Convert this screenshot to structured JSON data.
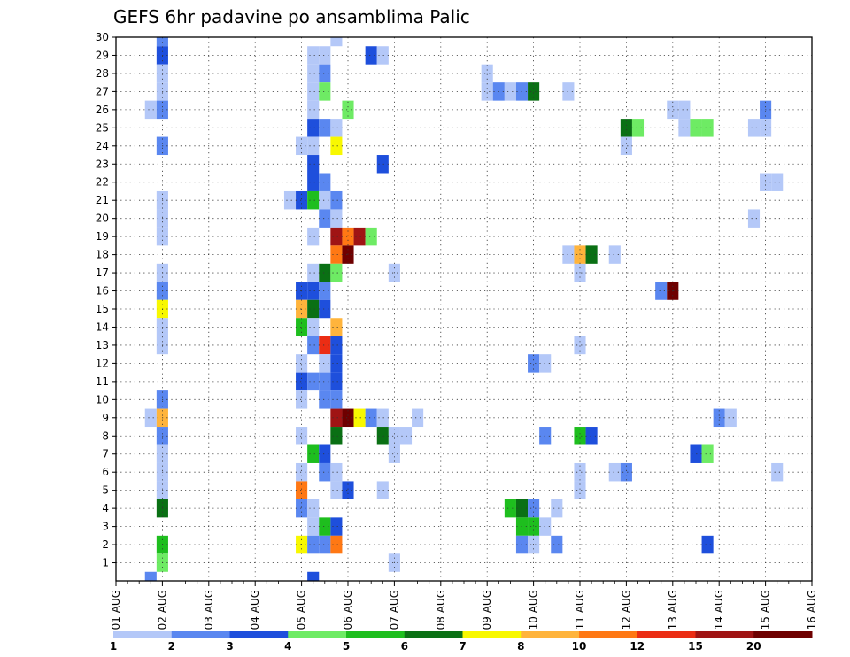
{
  "chart_data": {
    "type": "heatmap",
    "title": "GEFS 6hr padavine po ansamblima Palic",
    "xlabel": "",
    "ylabel": "",
    "x_ticks": [
      "01 AUG",
      "02 AUG",
      "03 AUG",
      "04 AUG",
      "05 AUG",
      "06 AUG",
      "07 AUG",
      "08 AUG",
      "09 AUG",
      "10 AUG",
      "11 AUG",
      "12 AUG",
      "13 AUG",
      "14 AUG",
      "15 AUG",
      "16 AUG"
    ],
    "y_ticks": [
      "1",
      "2",
      "3",
      "4",
      "5",
      "6",
      "7",
      "8",
      "9",
      "10",
      "11",
      "12",
      "13",
      "14",
      "15",
      "16",
      "17",
      "18",
      "19",
      "20",
      "21",
      "22",
      "23",
      "24",
      "25",
      "26",
      "27",
      "28",
      "29",
      "30"
    ],
    "xlim_days": [
      0,
      15
    ],
    "ylim_members": [
      0,
      30
    ],
    "grid": true,
    "colorbar": {
      "levels": [
        "1",
        "2",
        "3",
        "4",
        "5",
        "6",
        "7",
        "8",
        "10",
        "12",
        "15",
        "20"
      ],
      "colors": [
        "#b4c8f8",
        "#5a87f0",
        "#1e4fdc",
        "#6eeb64",
        "#1ebe1e",
        "#0a7014",
        "#f8f800",
        "#ffb43c",
        "#ff7814",
        "#eb2d14",
        "#a01414",
        "#6e0000"
      ]
    },
    "cells_note": "[day_offset_from_01_AUG, ensemble_member, color_class 0-11]",
    "cells": [
      [
        1.0,
        30,
        1
      ],
      [
        1.0,
        29,
        2
      ],
      [
        1.0,
        28,
        0
      ],
      [
        1.0,
        27,
        0
      ],
      [
        0.75,
        26,
        0
      ],
      [
        1.0,
        26,
        1
      ],
      [
        1.0,
        24,
        1
      ],
      [
        1.0,
        21,
        0
      ],
      [
        1.0,
        20,
        0
      ],
      [
        1.0,
        19,
        0
      ],
      [
        1.0,
        17,
        0
      ],
      [
        1.0,
        16,
        1
      ],
      [
        1.0,
        15,
        6
      ],
      [
        1.0,
        14,
        0
      ],
      [
        1.0,
        13,
        0
      ],
      [
        1.0,
        10,
        1
      ],
      [
        0.75,
        9,
        0
      ],
      [
        1.0,
        9,
        7
      ],
      [
        1.0,
        8,
        1
      ],
      [
        1.0,
        7,
        0
      ],
      [
        1.0,
        6,
        0
      ],
      [
        1.0,
        5,
        0
      ],
      [
        1.0,
        4,
        5
      ],
      [
        1.0,
        2,
        4
      ],
      [
        1.0,
        1,
        3
      ],
      [
        0.75,
        0,
        1
      ],
      [
        4.75,
        30,
        0
      ],
      [
        4.25,
        29,
        0
      ],
      [
        4.5,
        29,
        0
      ],
      [
        5.5,
        29,
        2
      ],
      [
        5.75,
        29,
        0
      ],
      [
        4.25,
        28,
        0
      ],
      [
        4.5,
        28,
        1
      ],
      [
        4.25,
        27,
        0
      ],
      [
        4.5,
        27,
        3
      ],
      [
        4.25,
        26,
        0
      ],
      [
        5.0,
        26,
        3
      ],
      [
        4.25,
        25,
        2
      ],
      [
        4.5,
        25,
        1
      ],
      [
        4.75,
        25,
        0
      ],
      [
        4.0,
        24,
        0
      ],
      [
        4.25,
        24,
        0
      ],
      [
        4.75,
        24,
        6
      ],
      [
        4.25,
        23,
        2
      ],
      [
        5.75,
        23,
        2
      ],
      [
        4.25,
        22,
        2
      ],
      [
        4.5,
        22,
        1
      ],
      [
        3.75,
        21,
        0
      ],
      [
        4.0,
        21,
        2
      ],
      [
        4.25,
        21,
        4
      ],
      [
        4.5,
        21,
        0
      ],
      [
        4.75,
        21,
        1
      ],
      [
        4.5,
        20,
        1
      ],
      [
        4.75,
        20,
        0
      ],
      [
        4.25,
        19,
        0
      ],
      [
        4.75,
        19,
        10
      ],
      [
        5.0,
        19,
        8
      ],
      [
        5.25,
        19,
        10
      ],
      [
        5.5,
        19,
        3
      ],
      [
        4.75,
        18,
        8
      ],
      [
        5.0,
        18,
        11
      ],
      [
        4.25,
        17,
        0
      ],
      [
        4.5,
        17,
        5
      ],
      [
        4.75,
        17,
        3
      ],
      [
        4.0,
        16,
        2
      ],
      [
        4.25,
        16,
        2
      ],
      [
        4.5,
        16,
        1
      ],
      [
        4.0,
        15,
        7
      ],
      [
        4.25,
        15,
        5
      ],
      [
        4.5,
        15,
        2
      ],
      [
        4.0,
        14,
        4
      ],
      [
        4.25,
        14,
        0
      ],
      [
        4.75,
        14,
        7
      ],
      [
        4.25,
        13,
        1
      ],
      [
        4.5,
        13,
        9
      ],
      [
        4.75,
        13,
        2
      ],
      [
        4.0,
        12,
        0
      ],
      [
        4.5,
        12,
        0
      ],
      [
        4.75,
        12,
        2
      ],
      [
        4.0,
        11,
        2
      ],
      [
        4.25,
        11,
        1
      ],
      [
        4.5,
        11,
        1
      ],
      [
        4.75,
        11,
        2
      ],
      [
        4.0,
        10,
        0
      ],
      [
        4.5,
        10,
        1
      ],
      [
        4.75,
        10,
        1
      ],
      [
        4.75,
        9,
        10
      ],
      [
        5.0,
        9,
        11
      ],
      [
        5.25,
        9,
        6
      ],
      [
        5.5,
        9,
        1
      ],
      [
        5.75,
        9,
        0
      ],
      [
        4.0,
        8,
        0
      ],
      [
        4.75,
        8,
        5
      ],
      [
        4.25,
        7,
        4
      ],
      [
        4.5,
        7,
        2
      ],
      [
        4.0,
        6,
        0
      ],
      [
        4.5,
        6,
        1
      ],
      [
        4.75,
        6,
        0
      ],
      [
        4.0,
        5,
        8
      ],
      [
        4.75,
        5,
        0
      ],
      [
        5.0,
        5,
        2
      ],
      [
        4.0,
        4,
        1
      ],
      [
        4.25,
        4,
        0
      ],
      [
        4.25,
        3,
        0
      ],
      [
        4.5,
        3,
        4
      ],
      [
        4.75,
        3,
        2
      ],
      [
        4.0,
        2,
        6
      ],
      [
        4.25,
        2,
        1
      ],
      [
        4.5,
        2,
        1
      ],
      [
        4.75,
        2,
        8
      ],
      [
        4.25,
        0,
        2
      ],
      [
        5.75,
        5,
        0
      ],
      [
        6.0,
        7,
        0
      ],
      [
        6.5,
        9,
        0
      ],
      [
        6.0,
        17,
        0
      ],
      [
        6.0,
        1,
        0
      ],
      [
        5.75,
        8,
        5
      ],
      [
        6.0,
        8,
        0
      ],
      [
        6.25,
        8,
        0
      ],
      [
        8.0,
        28,
        0
      ],
      [
        8.0,
        27,
        0
      ],
      [
        8.25,
        27,
        1
      ],
      [
        8.5,
        27,
        0
      ],
      [
        8.75,
        27,
        1
      ],
      [
        9.0,
        27,
        5
      ],
      [
        9.75,
        27,
        0
      ],
      [
        8.5,
        4,
        4
      ],
      [
        8.75,
        4,
        5
      ],
      [
        9.0,
        4,
        1
      ],
      [
        9.5,
        4,
        0
      ],
      [
        8.75,
        3,
        4
      ],
      [
        9.0,
        3,
        4
      ],
      [
        9.25,
        3,
        0
      ],
      [
        8.75,
        2,
        1
      ],
      [
        9.0,
        2,
        0
      ],
      [
        9.5,
        2,
        1
      ],
      [
        9.0,
        12,
        1
      ],
      [
        9.25,
        12,
        0
      ],
      [
        9.25,
        8,
        1
      ],
      [
        10.0,
        17,
        0
      ],
      [
        10.0,
        13,
        0
      ],
      [
        10.0,
        6,
        0
      ],
      [
        10.0,
        5,
        0
      ],
      [
        9.75,
        18,
        0
      ],
      [
        10.0,
        18,
        7
      ],
      [
        10.25,
        18,
        5
      ],
      [
        10.75,
        18,
        0
      ],
      [
        10.0,
        8,
        4
      ],
      [
        10.25,
        8,
        2
      ],
      [
        10.75,
        6,
        0
      ],
      [
        11.0,
        6,
        1
      ],
      [
        11.0,
        25,
        5
      ],
      [
        11.25,
        25,
        3
      ],
      [
        11.0,
        24,
        0
      ],
      [
        12.0,
        26,
        0
      ],
      [
        12.25,
        26,
        0
      ],
      [
        12.25,
        25,
        0
      ],
      [
        12.5,
        25,
        3
      ],
      [
        12.75,
        25,
        3
      ],
      [
        11.75,
        16,
        1
      ],
      [
        12.0,
        16,
        11
      ],
      [
        12.5,
        7,
        2
      ],
      [
        12.75,
        7,
        3
      ],
      [
        12.75,
        2,
        2
      ],
      [
        13.0,
        9,
        1
      ],
      [
        13.25,
        9,
        0
      ],
      [
        14.0,
        26,
        1
      ],
      [
        13.75,
        25,
        0
      ],
      [
        14.0,
        25,
        0
      ],
      [
        13.75,
        20,
        0
      ],
      [
        14.0,
        22,
        0
      ],
      [
        14.25,
        22,
        0
      ],
      [
        14.25,
        6,
        0
      ]
    ]
  }
}
